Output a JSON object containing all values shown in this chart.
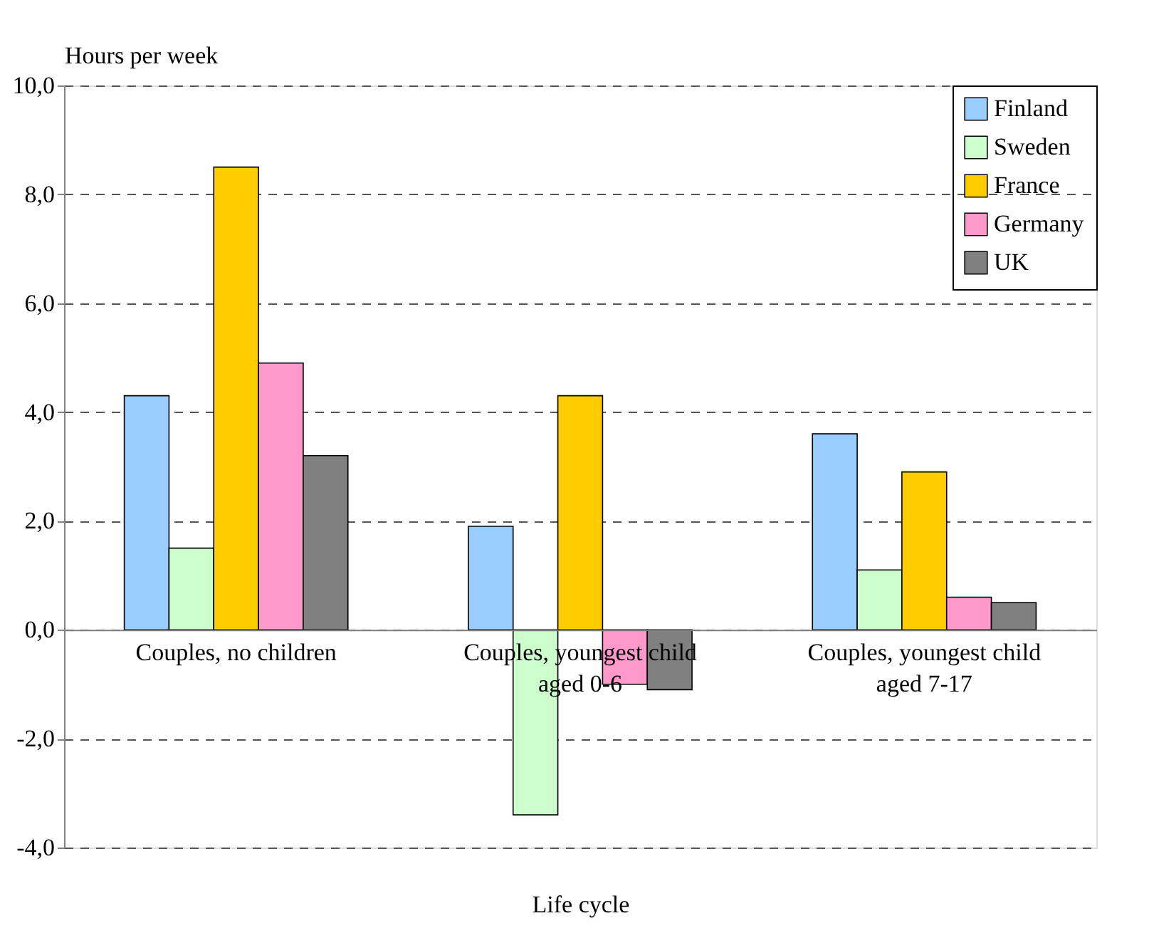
{
  "chart_data": {
    "type": "bar",
    "ylabel": "Hours per week",
    "xlabel": "Life cycle",
    "categories": [
      "Couples, no children",
      "Couples, youngest child\naged 0-6",
      "Couples, youngest child\naged 7-17"
    ],
    "series": [
      {
        "name": "Finland",
        "color": "#99ccff",
        "values": [
          4.3,
          1.9,
          3.6
        ]
      },
      {
        "name": "Sweden",
        "color": "#ccffcc",
        "values": [
          1.5,
          -3.4,
          1.1
        ]
      },
      {
        "name": "France",
        "color": "#ffcc00",
        "values": [
          8.5,
          4.3,
          2.9
        ]
      },
      {
        "name": "Germany",
        "color": "#ff99cc",
        "values": [
          4.9,
          -1.0,
          0.6
        ]
      },
      {
        "name": "UK",
        "color": "#808080",
        "values": [
          3.2,
          -1.1,
          0.5
        ]
      }
    ],
    "ylim": [
      -4,
      10
    ],
    "yticks": [
      {
        "value": -4,
        "label": "-4,0"
      },
      {
        "value": -2,
        "label": "-2,0"
      },
      {
        "value": 0,
        "label": "0,0"
      },
      {
        "value": 2,
        "label": "2,0"
      },
      {
        "value": 4,
        "label": "4,0"
      },
      {
        "value": 6,
        "label": "6,0"
      },
      {
        "value": 8,
        "label": "8,0"
      },
      {
        "value": 10,
        "label": "10,0"
      }
    ],
    "grid": "y",
    "legend": "top right"
  }
}
